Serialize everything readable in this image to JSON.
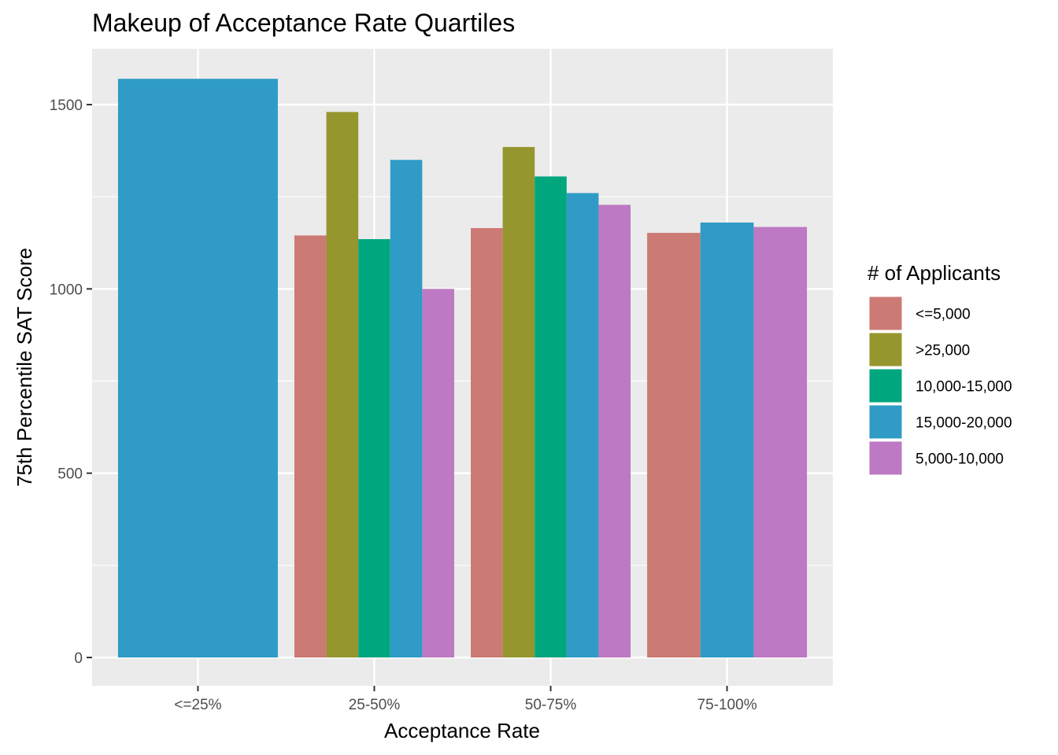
{
  "chart_data": {
    "type": "bar",
    "title": "Makeup of Acceptance Rate Quartiles",
    "xlabel": "Acceptance Rate",
    "ylabel": "75th Percentile SAT Score",
    "ylim": [
      0,
      1600
    ],
    "yticks": [
      0,
      500,
      1000,
      1500
    ],
    "grid": true,
    "legend": {
      "title": "# of Applicants",
      "placement": "right",
      "entries": [
        {
          "name": "<=5,000",
          "color": "#CC7A74"
        },
        {
          "name": ">25,000",
          "color": "#96962E"
        },
        {
          "name": "10,000-15,000",
          "color": "#00A67E"
        },
        {
          "name": "15,000-20,000",
          "color": "#2F9BC6"
        },
        {
          "name": "5,000-10,000",
          "color": "#BD79C3"
        }
      ]
    },
    "categories": [
      "<=25%",
      "25-50%",
      "50-75%",
      "75-100%"
    ],
    "groups": [
      {
        "category": "<=25%",
        "bars": [
          {
            "series": "15,000-20,000",
            "value": 1570
          }
        ]
      },
      {
        "category": "25-50%",
        "bars": [
          {
            "series": "<=5,000",
            "value": 1145
          },
          {
            "series": ">25,000",
            "value": 1480
          },
          {
            "series": "10,000-15,000",
            "value": 1135
          },
          {
            "series": "15,000-20,000",
            "value": 1350
          },
          {
            "series": "5,000-10,000",
            "value": 1000
          }
        ]
      },
      {
        "category": "50-75%",
        "bars": [
          {
            "series": "<=5,000",
            "value": 1165
          },
          {
            "series": ">25,000",
            "value": 1385
          },
          {
            "series": "10,000-15,000",
            "value": 1305
          },
          {
            "series": "15,000-20,000",
            "value": 1260
          },
          {
            "series": "5,000-10,000",
            "value": 1228
          }
        ]
      },
      {
        "category": "75-100%",
        "bars": [
          {
            "series": "<=5,000",
            "value": 1152
          },
          {
            "series": "15,000-20,000",
            "value": 1180
          },
          {
            "series": "5,000-10,000",
            "value": 1168
          }
        ]
      }
    ]
  }
}
